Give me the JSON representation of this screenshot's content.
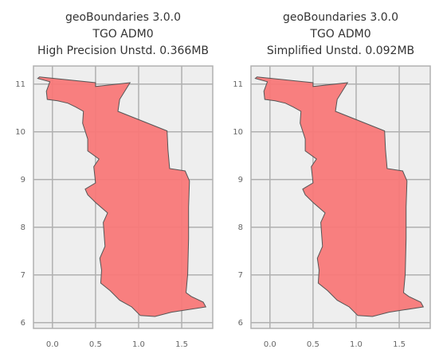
{
  "chart_data": [
    {
      "type": "map",
      "title": [
        "geoBoundaries 3.0.0",
        "TGO ADM0",
        "High Precision Unstd. 0.366MB"
      ],
      "x": [
        -0.15,
        0.5,
        0.5,
        0.9,
        0.78,
        0.76,
        1.33,
        1.34,
        1.36,
        1.54,
        1.59,
        1.58,
        1.58,
        1.57,
        1.55,
        1.61,
        1.75,
        1.78,
        1.38,
        1.19,
        1.02,
        0.92,
        0.78,
        0.67,
        0.56,
        0.57,
        0.55,
        0.61,
        0.59,
        0.64,
        0.5,
        0.41,
        0.38,
        0.5,
        0.48,
        0.54,
        0.41,
        0.41,
        0.35,
        0.36,
        0.27,
        0.18,
        0.06,
        -0.06,
        -0.07,
        -0.03,
        -0.17
      ],
      "y": [
        11.15,
        11.03,
        10.95,
        11.03,
        10.68,
        10.43,
        10.02,
        9.63,
        9.23,
        9.18,
        8.97,
        8.43,
        7.77,
        7.02,
        6.63,
        6.55,
        6.43,
        6.33,
        6.22,
        6.13,
        6.15,
        6.33,
        6.47,
        6.67,
        6.83,
        7.1,
        7.35,
        7.6,
        8.1,
        8.3,
        8.52,
        8.68,
        8.8,
        8.93,
        9.27,
        9.43,
        9.6,
        9.85,
        10.18,
        10.43,
        10.52,
        10.6,
        10.65,
        10.68,
        10.85,
        11.05,
        11.12
      ],
      "color": "#f87878",
      "xlim": [
        -0.22,
        1.86
      ],
      "ylim": [
        5.88,
        11.38
      ],
      "xticks": [
        {
          "value": 0,
          "label": "0.0"
        },
        0.5,
        {
          "value": 1,
          "label": "1.0"
        },
        1.5
      ],
      "yticks": [
        6,
        7,
        8,
        9,
        10,
        11
      ],
      "grid": true
    },
    {
      "type": "map",
      "title": [
        "geoBoundaries 3.0.0",
        "TGO ADM0",
        "Simplified Unstd. 0.092MB"
      ],
      "x": [
        -0.15,
        0.5,
        0.5,
        0.9,
        0.78,
        0.76,
        1.33,
        1.34,
        1.36,
        1.54,
        1.59,
        1.58,
        1.58,
        1.57,
        1.55,
        1.61,
        1.75,
        1.78,
        1.38,
        1.19,
        1.02,
        0.92,
        0.78,
        0.67,
        0.56,
        0.57,
        0.55,
        0.61,
        0.59,
        0.64,
        0.5,
        0.41,
        0.38,
        0.5,
        0.48,
        0.54,
        0.41,
        0.41,
        0.35,
        0.36,
        0.27,
        0.18,
        0.06,
        -0.06,
        -0.07,
        -0.03,
        -0.17
      ],
      "y": [
        11.15,
        11.03,
        10.95,
        11.03,
        10.68,
        10.43,
        10.02,
        9.63,
        9.23,
        9.18,
        8.97,
        8.43,
        7.77,
        7.02,
        6.63,
        6.55,
        6.43,
        6.33,
        6.22,
        6.13,
        6.15,
        6.33,
        6.47,
        6.67,
        6.83,
        7.1,
        7.35,
        7.6,
        8.1,
        8.3,
        8.52,
        8.68,
        8.8,
        8.93,
        9.27,
        9.43,
        9.6,
        9.85,
        10.18,
        10.43,
        10.52,
        10.6,
        10.65,
        10.68,
        10.85,
        11.05,
        11.12
      ],
      "color": "#f87878",
      "xlim": [
        -0.22,
        1.86
      ],
      "ylim": [
        5.88,
        11.38
      ],
      "xticks": [
        {
          "value": 0,
          "label": "0.0"
        },
        0.5,
        {
          "value": 1,
          "label": "1.0"
        },
        1.5
      ],
      "yticks": [
        6,
        7,
        8,
        9,
        10,
        11
      ],
      "grid": true
    }
  ]
}
